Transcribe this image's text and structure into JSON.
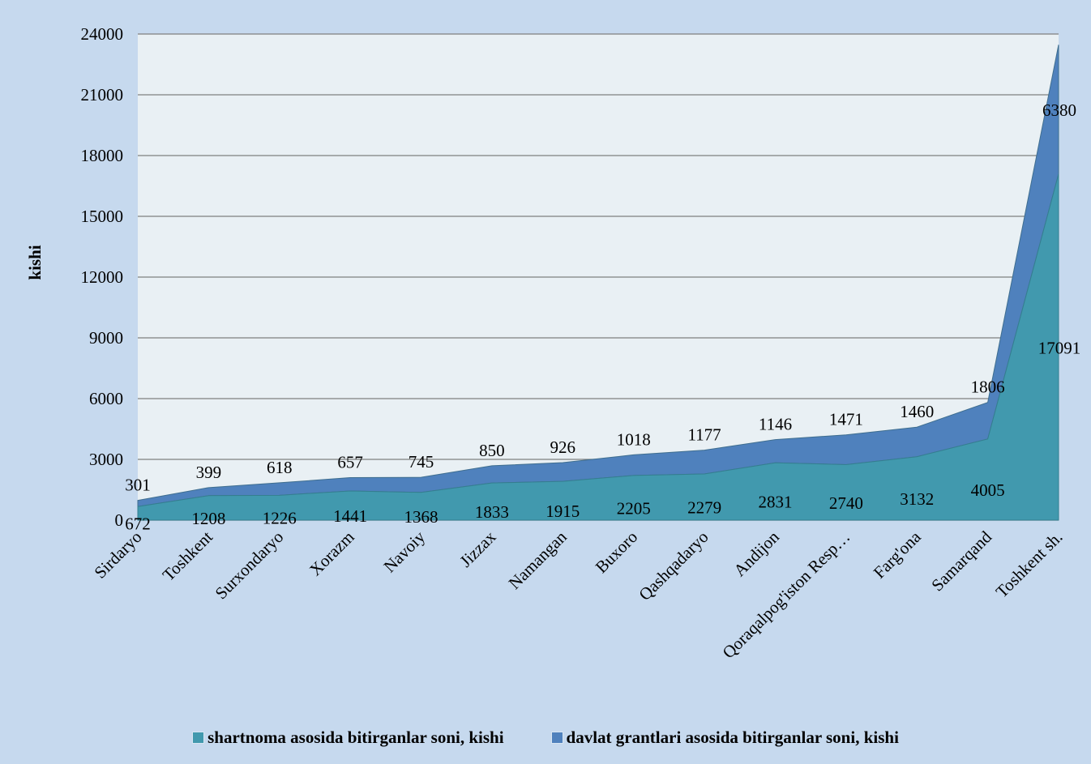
{
  "chart_data": {
    "type": "area",
    "stacked": true,
    "categories": [
      "Sirdaryo",
      "Toshkent",
      "Surxondaryo",
      "Xorazm",
      "Navoiy",
      "Jizzax",
      "Namangan",
      "Buxoro",
      "Qashqadaryo",
      "Andijon",
      "Qoraqalpog'iston Resp…",
      "Farg'ona",
      "Samarqand",
      "Toshkent sh."
    ],
    "series": [
      {
        "name": "shartnoma asosida bitirganlar soni, kishi",
        "color": "#4199ae",
        "values": [
          672,
          1208,
          1226,
          1441,
          1368,
          1833,
          1915,
          2205,
          2279,
          2831,
          2740,
          3132,
          4005,
          17091
        ]
      },
      {
        "name": "davlat grantlari asosida bitirganlar soni, kishi",
        "color": "#4f81bd",
        "values": [
          301,
          399,
          618,
          657,
          745,
          850,
          926,
          1018,
          1177,
          1146,
          1471,
          1460,
          1806,
          6380
        ]
      }
    ],
    "ylabel": "kishi",
    "xlabel": "",
    "ylim": [
      0,
      24000
    ],
    "yticks": [
      0,
      3000,
      6000,
      9000,
      12000,
      15000,
      18000,
      21000,
      24000
    ],
    "grid": true,
    "legend_position": "bottom",
    "plot_background": "#e9f0f4",
    "background": "#c6d9ee"
  }
}
